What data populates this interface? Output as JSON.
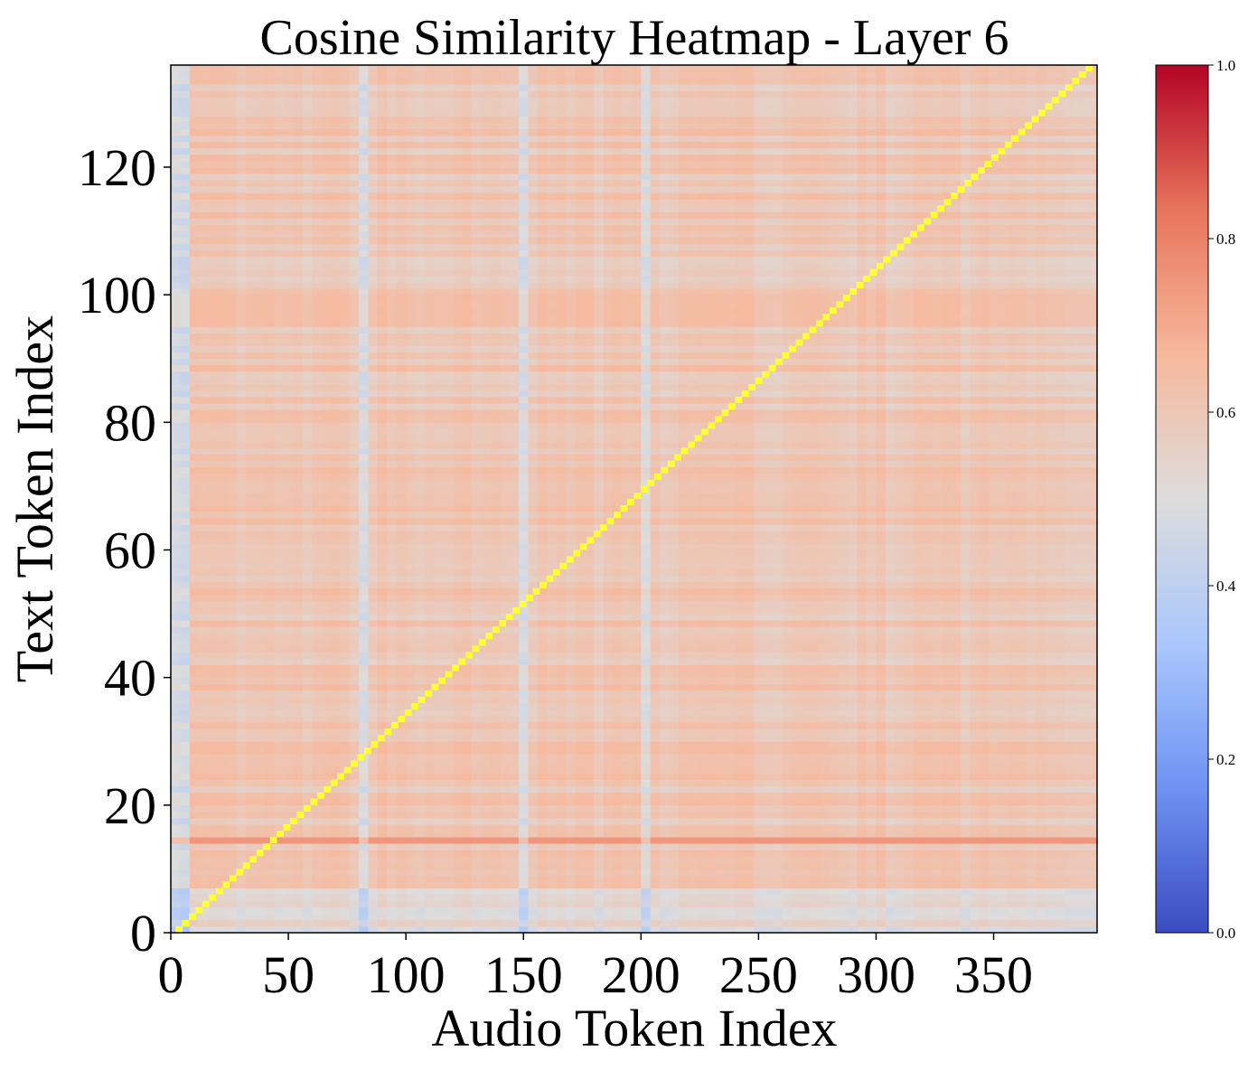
{
  "chart_data": {
    "type": "heatmap",
    "title": "Cosine Similarity Heatmap - Layer 6",
    "xlabel": "Audio Token Index",
    "ylabel": "Text Token Index",
    "xlim": [
      0,
      394
    ],
    "ylim": [
      0,
      136
    ],
    "xticks": [
      0,
      50,
      100,
      150,
      200,
      250,
      300,
      350
    ],
    "xtick_labels": [
      "0",
      "50",
      "100",
      "150",
      "200",
      "250",
      "300",
      "350"
    ],
    "yticks": [
      0,
      20,
      40,
      60,
      80,
      100,
      120
    ],
    "ytick_labels": [
      "0",
      "20",
      "40",
      "60",
      "80",
      "100",
      "120"
    ],
    "colormap": "coolwarm",
    "colormap_stops": [
      "#3b4cc0",
      "#6f92f3",
      "#aac7fd",
      "#dddcdc",
      "#f7b89c",
      "#e7745b",
      "#b40426"
    ],
    "colorbar": {
      "range": [
        0.0,
        1.0
      ],
      "ticks": [
        0.0,
        0.2,
        0.4,
        0.6,
        0.8,
        1.0
      ],
      "tick_labels": [
        "0.0",
        "0.2",
        "0.4",
        "0.6",
        "0.8",
        "1.0"
      ]
    },
    "alignment_color": "#ffff33",
    "approx_values": {
      "typical": 0.6,
      "high_row_text_index_14": 0.75,
      "low_columns_audio_index_0_to_5": 0.42,
      "low_rows_text_index_0_to_6": 0.5
    }
  }
}
